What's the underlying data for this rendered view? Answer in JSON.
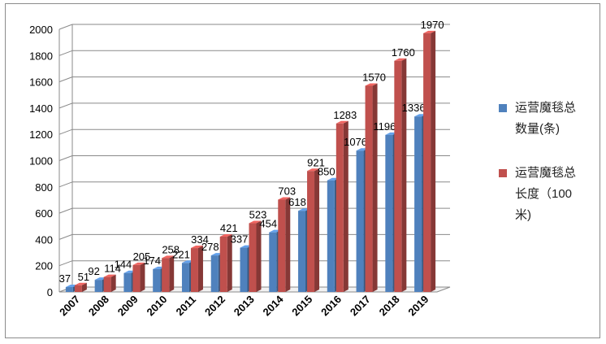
{
  "chart_data": {
    "type": "bar",
    "categories": [
      "2007",
      "2008",
      "2009",
      "2010",
      "2011",
      "2012",
      "2013",
      "2014",
      "2015",
      "2016",
      "2017",
      "2018",
      "2019"
    ],
    "series": [
      {
        "name": "运营魔毯总数量(条)",
        "color": "#4f81bd",
        "values": [
          37,
          92,
          144,
          174,
          221,
          278,
          337,
          454,
          618,
          850,
          1076,
          1196,
          1336
        ]
      },
      {
        "name": "运营魔毯总长度（100米)",
        "color": "#c0504d",
        "values": [
          51,
          114,
          205,
          258,
          334,
          421,
          523,
          703,
          921,
          1283,
          1570,
          1760,
          1970
        ]
      }
    ],
    "ylim": [
      0,
      2000
    ],
    "yticks": [
      0,
      200,
      400,
      600,
      800,
      1000,
      1200,
      1400,
      1600,
      1800,
      2000
    ],
    "grid": true,
    "legend": "right",
    "title": "",
    "xlabel": "",
    "ylabel": ""
  },
  "legend": {
    "series1_line1": "运营魔毯总",
    "series1_line2": "数量(条)",
    "series2_line1": "运营魔毯总",
    "series2_line2": "长度（100",
    "series2_line3": "米)"
  }
}
